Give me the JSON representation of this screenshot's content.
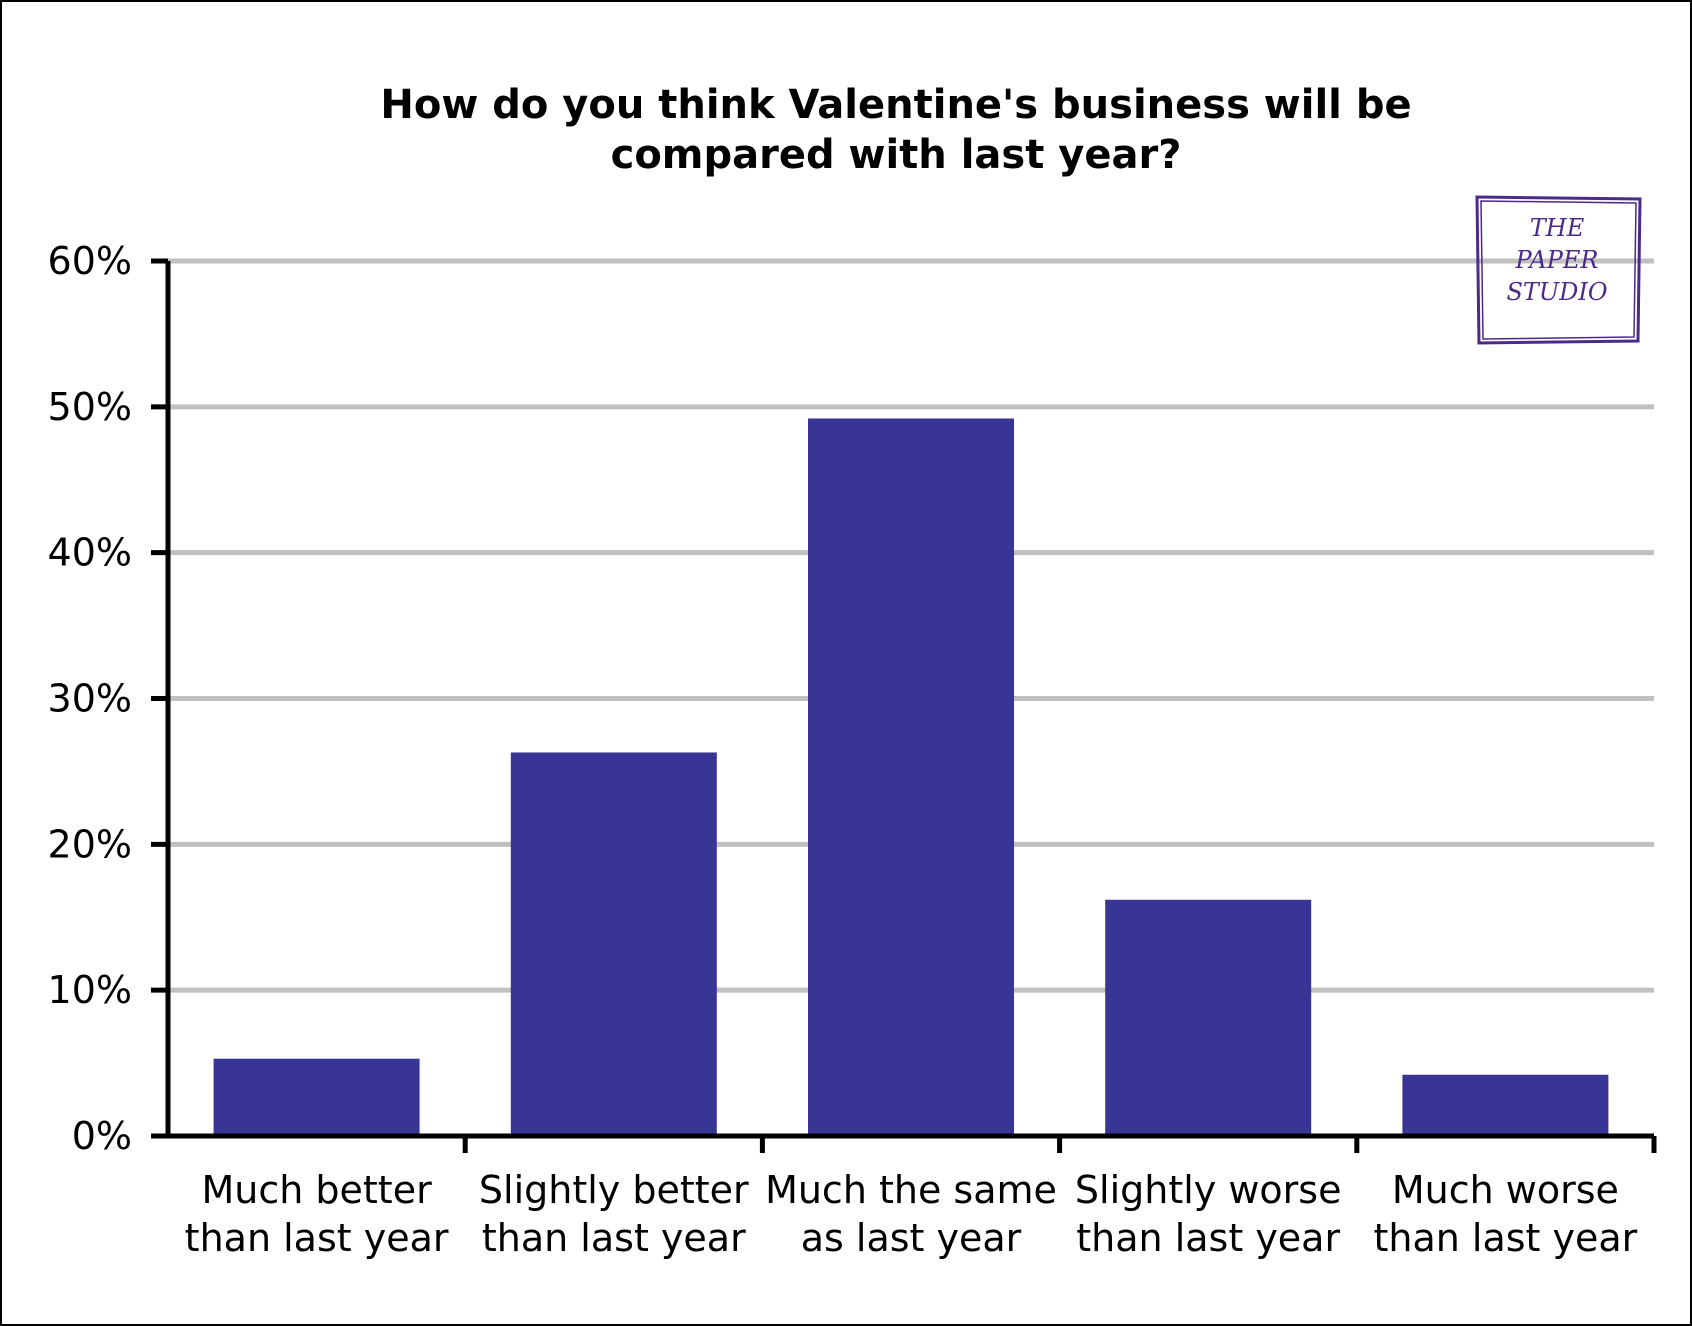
{
  "chart_data": {
    "type": "bar",
    "title_lines": [
      "How do you think Valentine's business will be",
      "compared with last year?"
    ],
    "categories": [
      [
        "Much better",
        "than last year"
      ],
      [
        "Slightly better",
        "than last year"
      ],
      [
        "Much the same",
        "as last year"
      ],
      [
        "Slightly worse",
        "than last year"
      ],
      [
        "Much worse",
        "than last year"
      ]
    ],
    "values": [
      5.3,
      26.3,
      49.2,
      16.2,
      4.2
    ],
    "ylim": [
      0,
      60
    ],
    "yticks": [
      0,
      10,
      20,
      30,
      40,
      50,
      60
    ],
    "ytick_labels": [
      "0%",
      "10%",
      "20%",
      "30%",
      "40%",
      "50%",
      "60%"
    ],
    "xlabel": "",
    "ylabel": "",
    "grid": true,
    "bar_color": "#393594"
  },
  "logo": {
    "lines": [
      "THE",
      "PAPER",
      "STUDIO"
    ],
    "color": "#4b2a8a"
  }
}
